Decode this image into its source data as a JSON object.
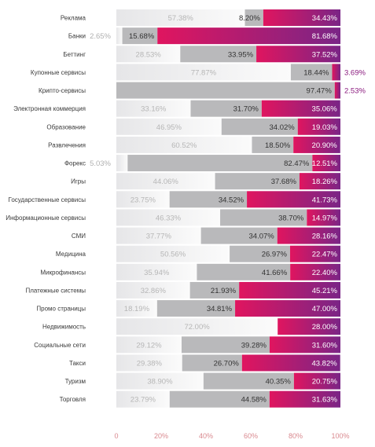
{
  "chart_data": {
    "type": "bar",
    "orientation": "horizontal",
    "stacked": true,
    "normalized": true,
    "xlim": [
      0,
      100
    ],
    "xticks": [
      "0",
      "20%",
      "40%",
      "60%",
      "80%",
      "100%"
    ],
    "grid": false,
    "legend": "none",
    "colors": {
      "light_gradient": [
        "#e6e6e8",
        "#fbfbfb"
      ],
      "mid": "#b9b9bb",
      "dark_gradient": [
        "#e0155f",
        "#7a2586"
      ],
      "tick_color": "#d9898f",
      "outside_right_label": "#8a1a7e"
    },
    "categories": [
      "Реклама",
      "Банки",
      "Беттинг",
      "Купонные сервисы",
      "Крипто-сервисы",
      "Электронная коммерция",
      "Образование",
      "Развлечения",
      "Форекс",
      "Игры",
      "Государственные сервисы",
      "Информационные сервисы",
      "СМИ",
      "Медицина",
      "Микрофинансы",
      "Платежные системы",
      "Промо страницы",
      "Недвижимость",
      "Социальные сети",
      "Такси",
      "Туризм",
      "Торговля"
    ],
    "series": [
      {
        "values": [
          57.38,
          2.65,
          28.53,
          77.87,
          0,
          33.16,
          46.95,
          60.52,
          5.03,
          44.06,
          23.75,
          46.33,
          37.77,
          50.56,
          35.94,
          32.86,
          18.19,
          72.0,
          29.12,
          29.38,
          38.9,
          23.79
        ],
        "labels": [
          "57.38%",
          "2.65%",
          "28.53%",
          "77.87%",
          "",
          "33.16%",
          "46.95%",
          "60.52%",
          "5.03%",
          "44.06%",
          "23.75%",
          "46.33%",
          "37.77%",
          "50.56%",
          "35.94%",
          "32.86%",
          "18.19%",
          "72.00%",
          "29.12%",
          "29.38%",
          "38.90%",
          "23.79%"
        ]
      },
      {
        "values": [
          8.2,
          15.68,
          33.95,
          18.44,
          97.47,
          31.7,
          34.02,
          18.5,
          82.47,
          37.68,
          34.52,
          38.7,
          34.07,
          26.97,
          41.66,
          21.93,
          34.81,
          0,
          39.28,
          26.7,
          40.35,
          44.58
        ],
        "labels": [
          "8.20%",
          "15.68%",
          "33.95%",
          "18.44%",
          "97.47%",
          "31.70%",
          "34.02%",
          "18.50%",
          "82.47%",
          "37.68%",
          "34.52%",
          "38.70%",
          "34.07%",
          "26.97%",
          "41.66%",
          "21.93%",
          "34.81%",
          "",
          "39.28%",
          "26.70%",
          "40.35%",
          "44.58%"
        ]
      },
      {
        "values": [
          34.43,
          81.68,
          37.52,
          3.69,
          2.53,
          35.06,
          19.03,
          20.9,
          12.51,
          18.26,
          41.73,
          14.97,
          28.16,
          22.47,
          22.4,
          45.21,
          47.0,
          28.0,
          31.6,
          43.82,
          20.75,
          31.63
        ],
        "labels": [
          "34.43%",
          "81.68%",
          "37.52%",
          "3.69%",
          "2.53%",
          "35.06%",
          "19.03%",
          "20.90%",
          "12.51%",
          "18.26%",
          "41.73%",
          "14.97%",
          "28.16%",
          "22.47%",
          "22.40%",
          "45.21%",
          "47.00%",
          "28.00%",
          "31.60%",
          "43.82%",
          "20.75%",
          "31.63%"
        ]
      }
    ]
  }
}
